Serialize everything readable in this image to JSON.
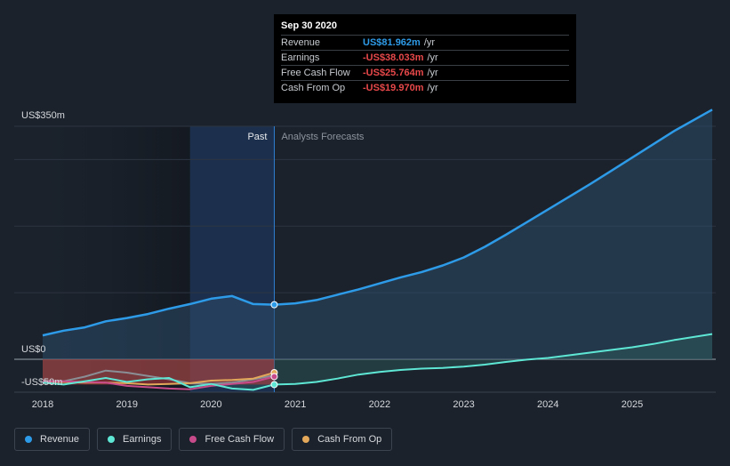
{
  "colors": {
    "revenue": "#2e9be8",
    "earnings": "#5ee7d4",
    "fcf": "#c74a8a",
    "cfo": "#e3a85a",
    "positive": "#2e9be8",
    "negative": "#e8484a"
  },
  "tooltip": {
    "date": "Sep 30 2020",
    "rows": [
      {
        "name": "Revenue",
        "value": "US$81.962m",
        "unit": "/yr",
        "tone": "positive"
      },
      {
        "name": "Earnings",
        "value": "-US$38.033m",
        "unit": "/yr",
        "tone": "negative"
      },
      {
        "name": "Free Cash Flow",
        "value": "-US$25.764m",
        "unit": "/yr",
        "tone": "negative"
      },
      {
        "name": "Cash From Op",
        "value": "-US$19.970m",
        "unit": "/yr",
        "tone": "negative"
      }
    ]
  },
  "legend": [
    {
      "key": "revenue",
      "label": "Revenue"
    },
    {
      "key": "earnings",
      "label": "Earnings"
    },
    {
      "key": "fcf",
      "label": "Free Cash Flow"
    },
    {
      "key": "cfo",
      "label": "Cash From Op"
    }
  ],
  "chart_data": {
    "type": "line",
    "title": "",
    "xlabel": "",
    "ylabel": "",
    "ylim": [
      -50,
      350
    ],
    "xlim": [
      2017.95,
      2025.95
    ],
    "y_labels": {
      "top": "US$350m",
      "zero": "US$0",
      "bottom": "-US$50m"
    },
    "x_ticks": [
      2018,
      2019,
      2020,
      2021,
      2022,
      2023,
      2024,
      2025
    ],
    "x_tick_labels": [
      "2018",
      "2019",
      "2020",
      "2021",
      "2022",
      "2023",
      "2024",
      "2025"
    ],
    "divider_x": 2020.75,
    "highlight_start_x": 2019.75,
    "past_label": "Past",
    "forecast_label": "Analysts Forecasts",
    "series": [
      {
        "name": "Revenue",
        "key": "revenue",
        "points": [
          [
            2018.0,
            36
          ],
          [
            2018.25,
            43
          ],
          [
            2018.5,
            48
          ],
          [
            2018.75,
            57
          ],
          [
            2019.0,
            62
          ],
          [
            2019.25,
            68
          ],
          [
            2019.5,
            76
          ],
          [
            2019.75,
            83
          ],
          [
            2020.0,
            91
          ],
          [
            2020.25,
            95
          ],
          [
            2020.5,
            83
          ],
          [
            2020.75,
            82
          ],
          [
            2021.0,
            84
          ],
          [
            2021.25,
            89
          ],
          [
            2021.5,
            97
          ],
          [
            2021.75,
            105
          ],
          [
            2022.0,
            114
          ],
          [
            2022.25,
            123
          ],
          [
            2022.5,
            131
          ],
          [
            2022.75,
            141
          ],
          [
            2023.0,
            153
          ],
          [
            2023.25,
            169
          ],
          [
            2023.5,
            187
          ],
          [
            2023.75,
            206
          ],
          [
            2024.0,
            225
          ],
          [
            2024.25,
            244
          ],
          [
            2024.5,
            263
          ],
          [
            2024.75,
            283
          ],
          [
            2025.0,
            303
          ],
          [
            2025.25,
            323
          ],
          [
            2025.5,
            343
          ],
          [
            2025.95,
            375
          ]
        ]
      },
      {
        "name": "Earnings",
        "key": "earnings",
        "points": [
          [
            2018.0,
            -35
          ],
          [
            2018.25,
            -38
          ],
          [
            2018.5,
            -33
          ],
          [
            2018.75,
            -28
          ],
          [
            2019.0,
            -34
          ],
          [
            2019.25,
            -30
          ],
          [
            2019.5,
            -28
          ],
          [
            2019.75,
            -42
          ],
          [
            2020.0,
            -37
          ],
          [
            2020.25,
            -44
          ],
          [
            2020.5,
            -46
          ],
          [
            2020.75,
            -38
          ],
          [
            2021.0,
            -37
          ],
          [
            2021.25,
            -34
          ],
          [
            2021.5,
            -29
          ],
          [
            2021.75,
            -23
          ],
          [
            2022.0,
            -19
          ],
          [
            2022.25,
            -16
          ],
          [
            2022.5,
            -14
          ],
          [
            2022.75,
            -13
          ],
          [
            2023.0,
            -11
          ],
          [
            2023.25,
            -8
          ],
          [
            2023.5,
            -4
          ],
          [
            2023.75,
            -0.5
          ],
          [
            2024.0,
            2
          ],
          [
            2024.25,
            6
          ],
          [
            2024.5,
            10
          ],
          [
            2024.75,
            14
          ],
          [
            2025.0,
            18
          ],
          [
            2025.25,
            23
          ],
          [
            2025.5,
            29
          ],
          [
            2025.95,
            38
          ]
        ]
      },
      {
        "name": "Free Cash Flow",
        "key": "fcf",
        "points": [
          [
            2018.0,
            -33
          ],
          [
            2018.25,
            -33
          ],
          [
            2018.5,
            -34
          ],
          [
            2018.75,
            -35
          ],
          [
            2019.0,
            -40
          ],
          [
            2019.25,
            -42
          ],
          [
            2019.5,
            -44
          ],
          [
            2019.75,
            -45
          ],
          [
            2020.0,
            -40
          ],
          [
            2020.25,
            -37
          ],
          [
            2020.5,
            -34
          ],
          [
            2020.75,
            -26
          ]
        ]
      },
      {
        "name": "Cash From Op",
        "key": "cfo",
        "points": [
          [
            2018.0,
            -33
          ],
          [
            2018.25,
            -34
          ],
          [
            2018.5,
            -35
          ],
          [
            2018.75,
            -35
          ],
          [
            2019.0,
            -36
          ],
          [
            2019.25,
            -38
          ],
          [
            2019.5,
            -37
          ],
          [
            2019.75,
            -36
          ],
          [
            2020.0,
            -32
          ],
          [
            2020.25,
            -31
          ],
          [
            2020.5,
            -29
          ],
          [
            2020.75,
            -20
          ]
        ]
      },
      {
        "name": "Earnings (past grey)",
        "key": "earnings_past",
        "points": [
          [
            2018.0,
            -32
          ],
          [
            2018.25,
            -33
          ],
          [
            2018.5,
            -26
          ],
          [
            2018.75,
            -17
          ],
          [
            2019.0,
            -20
          ],
          [
            2019.25,
            -25
          ],
          [
            2019.5,
            -30
          ],
          [
            2019.75,
            -36
          ],
          [
            2020.0,
            -37
          ],
          [
            2020.25,
            -35
          ],
          [
            2020.5,
            -30
          ],
          [
            2020.75,
            -24
          ]
        ]
      }
    ]
  }
}
